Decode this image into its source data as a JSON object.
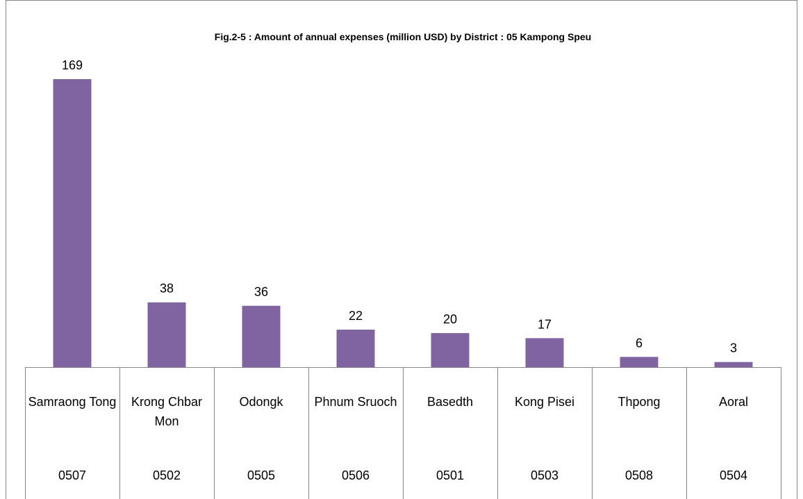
{
  "chart_data": {
    "type": "bar",
    "title": "Fig.2-5 : Amount of annual expenses (million USD) by District : 05 Kampong Speu",
    "categories": [
      "Samraong Tong",
      "Krong Chbar Mon",
      "Odongk",
      "Phnum Sruoch",
      "Basedth",
      "Kong Pisei",
      "Thpong",
      "Aoral"
    ],
    "codes": [
      "0507",
      "0502",
      "0505",
      "0506",
      "0501",
      "0503",
      "0508",
      "0504"
    ],
    "values": [
      169,
      38,
      36,
      22,
      20,
      17,
      6,
      3
    ],
    "color": "#8064a2"
  }
}
